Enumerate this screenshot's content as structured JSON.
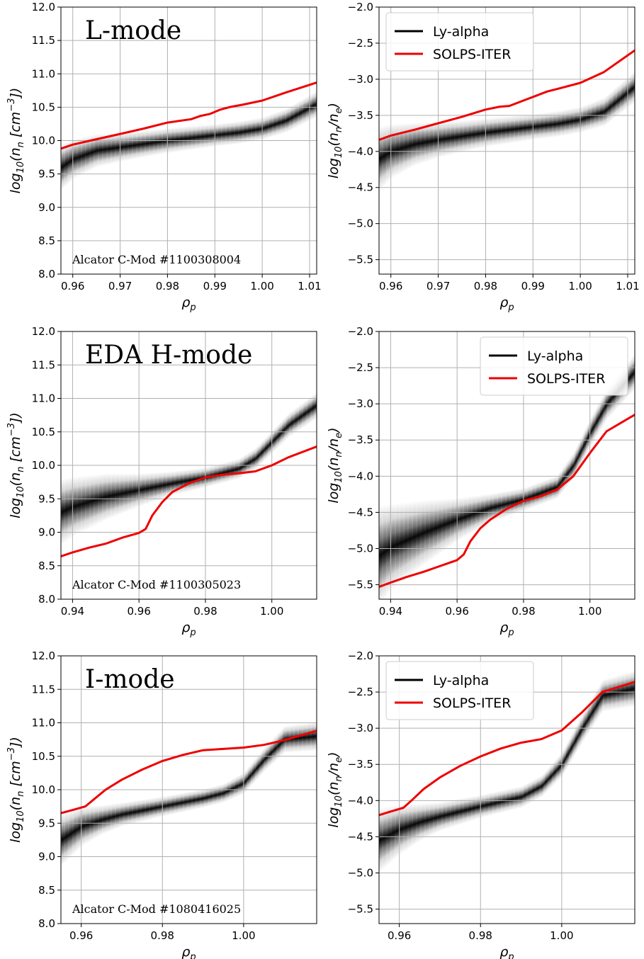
{
  "colors": {
    "ly_alpha": "#000000",
    "solps": "#ee0000",
    "grid": "#b0b0b0"
  },
  "chart_data": [
    {
      "type": "line",
      "row": 0,
      "col": 0,
      "annotation": "L-mode",
      "shot_label": "Alcator C-Mod #1100308004",
      "xlabel": "ρ",
      "xlabel_sub": "p",
      "ylabel": "log",
      "ylabel_sub": "10",
      "ylabel_rest": "(n",
      "ylabel_sub2": "n",
      "ylabel_rest2": " [cm",
      "ylabel_sup": "−3",
      "ylabel_end": "])",
      "xlim": [
        0.9575,
        1.0115
      ],
      "ylim": [
        8.0,
        12.0
      ],
      "xticks": [
        0.96,
        0.97,
        0.98,
        0.99,
        1.0,
        1.01
      ],
      "xtick_labels": [
        "0.96",
        "0.97",
        "0.98",
        "0.99",
        "1.00",
        "1.01"
      ],
      "yticks": [
        8.0,
        8.5,
        9.0,
        9.5,
        10.0,
        10.5,
        11.0,
        11.5,
        12.0
      ],
      "ytick_labels": [
        "8.0",
        "8.5",
        "9.0",
        "9.5",
        "10.0",
        "10.5",
        "11.0",
        "11.5",
        "12.0"
      ],
      "legend": null,
      "series": [
        {
          "name": "Ly-alpha",
          "kind": "band",
          "x": [
            0.9575,
            0.96,
            0.965,
            0.97,
            0.975,
            0.98,
            0.985,
            0.99,
            0.995,
            1.0,
            1.005,
            1.0115
          ],
          "y": [
            9.6,
            9.72,
            9.85,
            9.9,
            9.95,
            10.0,
            10.04,
            10.08,
            10.12,
            10.18,
            10.3,
            10.55
          ],
          "width": [
            0.35,
            0.3,
            0.25,
            0.22,
            0.2,
            0.19,
            0.18,
            0.17,
            0.17,
            0.17,
            0.18,
            0.2
          ]
        },
        {
          "name": "SOLPS-ITER",
          "kind": "line",
          "x": [
            0.9575,
            0.96,
            0.965,
            0.97,
            0.975,
            0.98,
            0.983,
            0.985,
            0.987,
            0.989,
            0.991,
            0.993,
            0.996,
            1.0,
            1.005,
            1.0115
          ],
          "y": [
            9.88,
            9.94,
            10.02,
            10.1,
            10.18,
            10.27,
            10.3,
            10.32,
            10.37,
            10.4,
            10.46,
            10.5,
            10.54,
            10.6,
            10.72,
            10.87
          ]
        }
      ]
    },
    {
      "type": "line",
      "row": 0,
      "col": 1,
      "annotation": "",
      "shot_label": "",
      "xlabel": "ρ",
      "xlabel_sub": "p",
      "ylabel": "log",
      "ylabel_sub": "10",
      "ylabel_rest": "(n",
      "ylabel_sub2": "n",
      "ylabel_rest2": "/n",
      "ylabel_sub3": "e",
      "ylabel_end": ")",
      "xlim": [
        0.9575,
        1.0115
      ],
      "ylim": [
        -5.7,
        -2.0
      ],
      "xticks": [
        0.96,
        0.97,
        0.98,
        0.99,
        1.0,
        1.01
      ],
      "xtick_labels": [
        "0.96",
        "0.97",
        "0.98",
        "0.99",
        "1.00",
        "1.01"
      ],
      "yticks": [
        -5.5,
        -5.0,
        -4.5,
        -4.0,
        -3.5,
        -3.0,
        -2.5,
        -2.0
      ],
      "ytick_labels": [
        "−5.5",
        "−5.0",
        "−4.5",
        "−4.0",
        "−3.5",
        "−3.0",
        "−2.5",
        "−2.0"
      ],
      "legend": "top-left",
      "series": [
        {
          "name": "Ly-alpha",
          "kind": "band",
          "x": [
            0.9575,
            0.96,
            0.965,
            0.97,
            0.975,
            0.98,
            0.985,
            0.99,
            0.995,
            1.0,
            1.005,
            1.0115
          ],
          "y": [
            -4.1,
            -4.0,
            -3.9,
            -3.84,
            -3.79,
            -3.74,
            -3.7,
            -3.66,
            -3.62,
            -3.56,
            -3.45,
            -3.1
          ],
          "width": [
            0.45,
            0.38,
            0.3,
            0.25,
            0.22,
            0.2,
            0.19,
            0.18,
            0.18,
            0.18,
            0.2,
            0.22
          ]
        },
        {
          "name": "SOLPS-ITER",
          "kind": "line",
          "x": [
            0.9575,
            0.96,
            0.965,
            0.97,
            0.975,
            0.98,
            0.983,
            0.985,
            0.987,
            0.989,
            0.991,
            0.993,
            0.996,
            1.0,
            1.005,
            1.0115
          ],
          "y": [
            -3.84,
            -3.78,
            -3.7,
            -3.61,
            -3.52,
            -3.42,
            -3.38,
            -3.37,
            -3.32,
            -3.27,
            -3.22,
            -3.17,
            -3.12,
            -3.05,
            -2.9,
            -2.6
          ]
        }
      ]
    },
    {
      "type": "line",
      "row": 1,
      "col": 0,
      "annotation": "EDA H-mode",
      "shot_label": "Alcator C-Mod #1100305023",
      "xlabel": "ρ",
      "xlabel_sub": "p",
      "ylabel": "log",
      "ylabel_sub": "10",
      "ylabel_rest": "(n",
      "ylabel_sub2": "n",
      "ylabel_rest2": " [cm",
      "ylabel_sup": "−3",
      "ylabel_end": "])",
      "xlim": [
        0.9365,
        1.0135
      ],
      "ylim": [
        8.0,
        12.0
      ],
      "xticks": [
        0.94,
        0.96,
        0.98,
        1.0
      ],
      "xtick_labels": [
        "0.94",
        "0.96",
        "0.98",
        "1.00"
      ],
      "yticks": [
        8.0,
        8.5,
        9.0,
        9.5,
        10.0,
        10.5,
        11.0,
        11.5,
        12.0
      ],
      "ytick_labels": [
        "8.0",
        "8.5",
        "9.0",
        "9.5",
        "10.0",
        "10.5",
        "11.0",
        "11.5",
        "12.0"
      ],
      "legend": null,
      "series": [
        {
          "name": "Ly-alpha",
          "kind": "band",
          "x": [
            0.9365,
            0.94,
            0.95,
            0.96,
            0.97,
            0.98,
            0.99,
            0.995,
            1.0,
            1.005,
            1.0135
          ],
          "y": [
            9.3,
            9.38,
            9.53,
            9.63,
            9.73,
            9.82,
            9.95,
            10.1,
            10.35,
            10.6,
            10.9
          ],
          "width": [
            0.5,
            0.45,
            0.35,
            0.25,
            0.18,
            0.15,
            0.15,
            0.16,
            0.17,
            0.18,
            0.2
          ]
        },
        {
          "name": "SOLPS-ITER",
          "kind": "line",
          "x": [
            0.9365,
            0.94,
            0.945,
            0.95,
            0.955,
            0.96,
            0.962,
            0.964,
            0.967,
            0.97,
            0.975,
            0.98,
            0.985,
            0.99,
            0.995,
            1.0,
            1.005,
            1.0135
          ],
          "y": [
            8.64,
            8.7,
            8.77,
            8.83,
            8.92,
            8.99,
            9.05,
            9.25,
            9.45,
            9.6,
            9.73,
            9.82,
            9.86,
            9.88,
            9.91,
            10.0,
            10.12,
            10.28
          ]
        }
      ]
    },
    {
      "type": "line",
      "row": 1,
      "col": 1,
      "annotation": "",
      "shot_label": "",
      "xlabel": "ρ",
      "xlabel_sub": "p",
      "ylabel": "log",
      "ylabel_sub": "10",
      "ylabel_rest": "(n",
      "ylabel_sub2": "n",
      "ylabel_rest2": "/n",
      "ylabel_sub3": "e",
      "ylabel_end": ")",
      "xlim": [
        0.9365,
        1.0135
      ],
      "ylim": [
        -5.7,
        -2.0
      ],
      "xticks": [
        0.94,
        0.96,
        0.98,
        1.0
      ],
      "xtick_labels": [
        "0.94",
        "0.96",
        "0.98",
        "1.00"
      ],
      "yticks": [
        -5.5,
        -5.0,
        -4.5,
        -4.0,
        -3.5,
        -3.0,
        -2.5,
        -2.0
      ],
      "ytick_labels": [
        "−5.5",
        "−5.0",
        "−4.5",
        "−4.0",
        "−3.5",
        "−3.0",
        "−2.5",
        "−2.0"
      ],
      "legend": "top-right",
      "series": [
        {
          "name": "Ly-alpha",
          "kind": "band",
          "x": [
            0.9365,
            0.94,
            0.95,
            0.96,
            0.97,
            0.98,
            0.99,
            0.995,
            1.0,
            1.005,
            1.0135
          ],
          "y": [
            -5.1,
            -4.98,
            -4.78,
            -4.6,
            -4.44,
            -4.32,
            -4.15,
            -3.85,
            -3.4,
            -3.0,
            -2.55
          ],
          "width": [
            0.7,
            0.6,
            0.45,
            0.3,
            0.2,
            0.16,
            0.16,
            0.18,
            0.2,
            0.22,
            0.25
          ]
        },
        {
          "name": "SOLPS-ITER",
          "kind": "line",
          "x": [
            0.9365,
            0.94,
            0.945,
            0.95,
            0.955,
            0.96,
            0.962,
            0.964,
            0.967,
            0.97,
            0.975,
            0.98,
            0.985,
            0.99,
            0.995,
            1.0,
            1.005,
            1.0135
          ],
          "y": [
            -5.53,
            -5.47,
            -5.39,
            -5.32,
            -5.24,
            -5.16,
            -5.08,
            -4.9,
            -4.72,
            -4.6,
            -4.45,
            -4.34,
            -4.28,
            -4.19,
            -4.0,
            -3.68,
            -3.38,
            -3.15
          ]
        }
      ]
    },
    {
      "type": "line",
      "row": 2,
      "col": 0,
      "annotation": "I-mode",
      "shot_label": "Alcator C-Mod #1080416025",
      "xlabel": "ρ",
      "xlabel_sub": "p",
      "ylabel": "log",
      "ylabel_sub": "10",
      "ylabel_rest": "(n",
      "ylabel_sub2": "n",
      "ylabel_rest2": " [cm",
      "ylabel_sup": "−3",
      "ylabel_end": "])",
      "xlim": [
        0.955,
        1.018
      ],
      "ylim": [
        8.0,
        12.0
      ],
      "xticks": [
        0.96,
        0.98,
        1.0
      ],
      "xtick_labels": [
        "0.96",
        "0.98",
        "1.00"
      ],
      "yticks": [
        8.0,
        8.5,
        9.0,
        9.5,
        10.0,
        10.5,
        11.0,
        11.5,
        12.0
      ],
      "ytick_labels": [
        "8.0",
        "8.5",
        "9.0",
        "9.5",
        "10.0",
        "10.5",
        "11.0",
        "11.5",
        "12.0"
      ],
      "legend": null,
      "series": [
        {
          "name": "Ly-alpha",
          "kind": "band",
          "x": [
            0.955,
            0.96,
            0.965,
            0.97,
            0.98,
            0.99,
            0.995,
            1.0,
            1.005,
            1.01,
            1.018
          ],
          "y": [
            9.25,
            9.45,
            9.55,
            9.63,
            9.75,
            9.87,
            9.95,
            10.1,
            10.45,
            10.75,
            10.8
          ],
          "width": [
            0.4,
            0.3,
            0.22,
            0.18,
            0.15,
            0.14,
            0.14,
            0.16,
            0.18,
            0.2,
            0.22
          ]
        },
        {
          "name": "SOLPS-ITER",
          "kind": "line",
          "x": [
            0.955,
            0.958,
            0.961,
            0.963,
            0.966,
            0.97,
            0.975,
            0.98,
            0.985,
            0.99,
            0.995,
            1.0,
            1.005,
            1.01,
            1.018
          ],
          "y": [
            9.65,
            9.7,
            9.75,
            9.85,
            10.0,
            10.15,
            10.3,
            10.43,
            10.52,
            10.59,
            10.61,
            10.63,
            10.67,
            10.74,
            10.88
          ]
        }
      ]
    },
    {
      "type": "line",
      "row": 2,
      "col": 1,
      "annotation": "",
      "shot_label": "",
      "xlabel": "ρ",
      "xlabel_sub": "p",
      "ylabel": "log",
      "ylabel_sub": "10",
      "ylabel_rest": "(n",
      "ylabel_sub2": "n",
      "ylabel_rest2": "/n",
      "ylabel_sub3": "e",
      "ylabel_end": ")",
      "xlim": [
        0.955,
        1.018
      ],
      "ylim": [
        -5.7,
        -2.0
      ],
      "xticks": [
        0.96,
        0.98,
        1.0
      ],
      "xtick_labels": [
        "0.96",
        "0.98",
        "1.00"
      ],
      "yticks": [
        -5.5,
        -5.0,
        -4.5,
        -4.0,
        -3.5,
        -3.0,
        -2.5,
        -2.0
      ],
      "ytick_labels": [
        "−5.5",
        "−5.0",
        "−4.5",
        "−4.0",
        "−3.5",
        "−3.0",
        "−2.5",
        "−2.0"
      ],
      "legend": "top-left",
      "series": [
        {
          "name": "Ly-alpha",
          "kind": "band",
          "x": [
            0.955,
            0.96,
            0.965,
            0.97,
            0.98,
            0.99,
            0.995,
            1.0,
            1.005,
            1.01,
            1.018
          ],
          "y": [
            -4.55,
            -4.4,
            -4.3,
            -4.22,
            -4.08,
            -3.95,
            -3.8,
            -3.5,
            -3.0,
            -2.55,
            -2.45
          ],
          "width": [
            0.45,
            0.35,
            0.26,
            0.2,
            0.16,
            0.15,
            0.15,
            0.17,
            0.2,
            0.22,
            0.25
          ]
        },
        {
          "name": "SOLPS-ITER",
          "kind": "line",
          "x": [
            0.955,
            0.958,
            0.961,
            0.963,
            0.966,
            0.97,
            0.975,
            0.98,
            0.985,
            0.99,
            0.995,
            1.0,
            1.005,
            1.01,
            1.018
          ],
          "y": [
            -4.2,
            -4.15,
            -4.1,
            -4.0,
            -3.84,
            -3.68,
            -3.52,
            -3.39,
            -3.28,
            -3.2,
            -3.15,
            -3.03,
            -2.78,
            -2.5,
            -2.36
          ]
        }
      ]
    }
  ]
}
